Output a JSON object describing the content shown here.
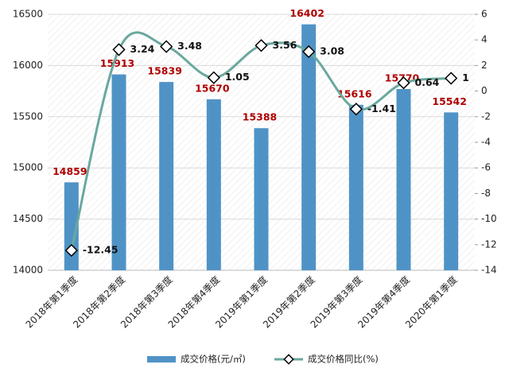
{
  "chart_data": {
    "type": "combo",
    "categories": [
      "2018年第1季度",
      "2018年第2季度",
      "2018年第3季度",
      "2018年第4季度",
      "2019年第1季度",
      "2019年第2季度",
      "2019年第3季度",
      "2019年第4季度",
      "2020年第1季度"
    ],
    "series": [
      {
        "name": "成交价格(元/㎡)",
        "type": "bar",
        "color": "#4f93c6",
        "label_color": "#b00000",
        "values": [
          14859,
          15913,
          15839,
          15670,
          15388,
          16402,
          15616,
          15770,
          15542
        ]
      },
      {
        "name": "成交价格同比(%)",
        "type": "line",
        "axis": "y2",
        "color": "#6aa89e",
        "label_color": "#111111",
        "values": [
          -12.45,
          3.24,
          3.48,
          1.05,
          3.56,
          3.08,
          -1.41,
          0.64,
          1
        ]
      }
    ],
    "ylim": [
      14000,
      16500
    ],
    "yticks": [
      14000,
      14500,
      15000,
      15500,
      16000,
      16500
    ],
    "y2lim": [
      -14,
      6
    ],
    "y2ticks": [
      -14,
      -12,
      -10,
      -8,
      -6,
      -4,
      -2,
      0,
      2,
      4,
      6
    ],
    "grid": true,
    "legend": "bottom"
  }
}
